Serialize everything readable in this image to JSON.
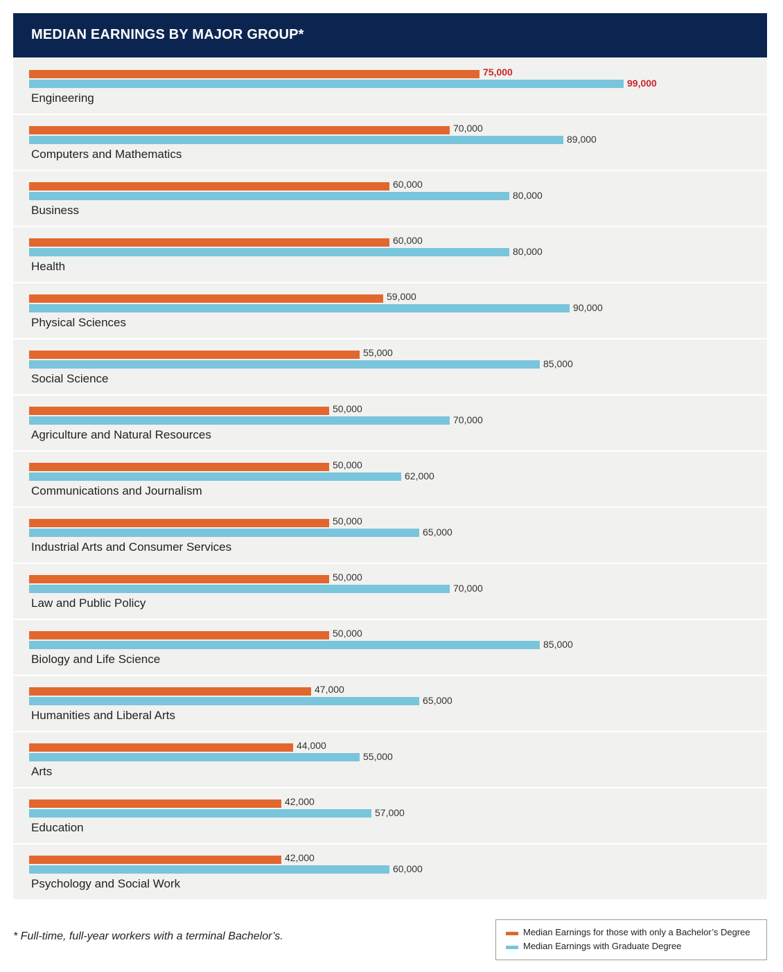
{
  "chart_data": {
    "type": "bar",
    "orientation": "horizontal",
    "title": "MEDIAN EARNINGS BY MAJOR GROUP*",
    "categories": [
      "Engineering",
      "Computers and Mathematics",
      "Business",
      "Health",
      "Physical Sciences",
      "Social Science",
      "Agriculture and Natural Resources",
      "Communications and Journalism",
      "Industrial Arts and Consumer Services",
      "Law and Public Policy",
      "Biology and Life Science",
      "Humanities and Liberal Arts",
      "Arts",
      "Education",
      "Psychology and Social Work"
    ],
    "series": [
      {
        "name": "Median Earnings for those with only a Bachelor’s Degree",
        "color": "#e2672e",
        "values": [
          75000,
          70000,
          60000,
          60000,
          59000,
          55000,
          50000,
          50000,
          50000,
          50000,
          50000,
          47000,
          44000,
          42000,
          42000
        ],
        "labels": [
          "75,000",
          "70,000",
          "60,000",
          "60,000",
          "59,000",
          "55,000",
          "50,000",
          "50,000",
          "50,000",
          "50,000",
          "50,000",
          "47,000",
          "44,000",
          "42,000",
          "42,000"
        ]
      },
      {
        "name": "Median Earnings with Graduate Degree",
        "color": "#78c5dc",
        "values": [
          99000,
          89000,
          80000,
          80000,
          90000,
          85000,
          70000,
          62000,
          65000,
          70000,
          85000,
          65000,
          55000,
          57000,
          60000
        ],
        "labels": [
          "99,000",
          "89,000",
          "80,000",
          "80,000",
          "90,000",
          "85,000",
          "70,000",
          "62,000",
          "65,000",
          "70,000",
          "85,000",
          "65,000",
          "55,000",
          "57,000",
          "60,000"
        ]
      }
    ],
    "highlight_category": "Engineering",
    "highlight_color": "#c8262c",
    "xlim": [
      0,
      99000
    ],
    "grid": false,
    "legend_position": "bottom-right"
  },
  "header": {
    "background": "#0c2550"
  },
  "footnote": "* Full-time, full-year workers with a terminal Bachelor’s."
}
